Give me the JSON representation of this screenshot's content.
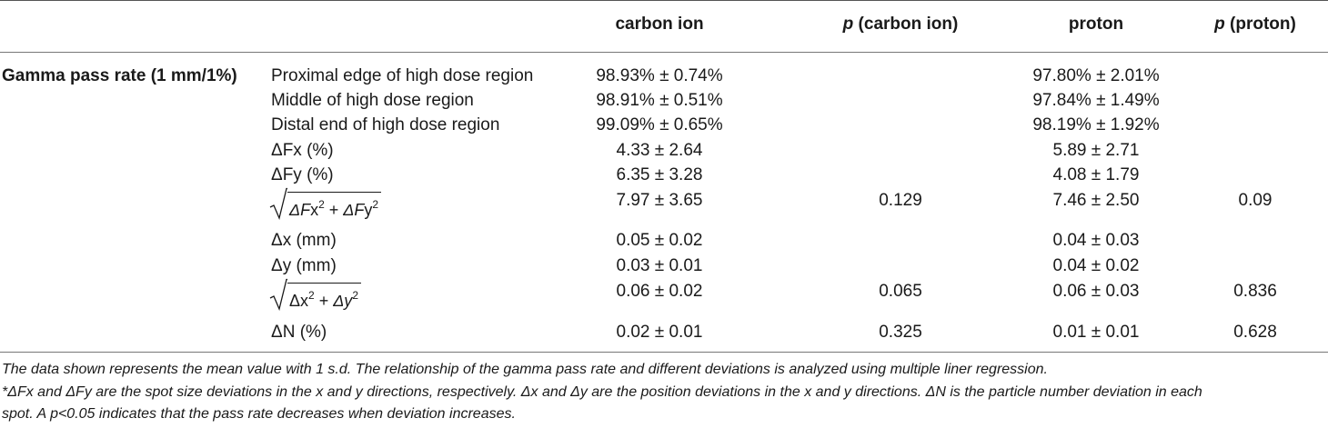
{
  "table": {
    "headers": {
      "c1": "carbon ion",
      "p1_prefix": "p",
      "p1_rest": " (carbon ion)",
      "c2": "proton",
      "p2_prefix": "p",
      "p2_rest": " (proton)"
    },
    "group_label": "Gamma pass rate (1 mm/1%)",
    "rows": [
      {
        "label": "Proximal edge of high dose region",
        "c1": "98.93% ± 0.74%",
        "p1": "",
        "c2": "97.80% ± 2.01%",
        "p2": ""
      },
      {
        "label": "Middle of high dose region",
        "c1": "98.91% ± 0.51%",
        "p1": "",
        "c2": "97.84% ± 1.49%",
        "p2": ""
      },
      {
        "label": "Distal end of high dose region",
        "c1": "99.09% ± 0.65%",
        "p1": "",
        "c2": "98.19% ± 1.92%",
        "p2": ""
      },
      {
        "label": "ΔFx (%)",
        "c1": "4.33 ± 2.64",
        "p1": "",
        "c2": "5.89 ± 2.71",
        "p2": ""
      },
      {
        "label": "ΔFy (%)",
        "c1": "6.35 ± 3.28",
        "p1": "",
        "c2": "4.08 ± 1.79",
        "p2": ""
      },
      {
        "label": "sqrt(ΔFx² + ΔFy²)",
        "c1": "7.97 ± 3.65",
        "p1": "0.129",
        "c2": "7.46 ± 2.50",
        "p2": "0.09"
      },
      {
        "label": "Δx (mm)",
        "c1": "0.05 ± 0.02",
        "p1": "",
        "c2": "0.04 ± 0.03",
        "p2": ""
      },
      {
        "label": "Δy (mm)",
        "c1": "0.03 ± 0.01",
        "p1": "",
        "c2": "0.04 ± 0.02",
        "p2": ""
      },
      {
        "label": "sqrt(Δx² + Δy²)",
        "c1": "0.06 ± 0.02",
        "p1": "0.065",
        "c2": "0.06 ± 0.03",
        "p2": "0.836"
      },
      {
        "label": "ΔN (%)",
        "c1": "0.02 ± 0.01",
        "p1": "0.325",
        "c2": "0.01 ± 0.01",
        "p2": "0.628"
      }
    ],
    "formula_parts": {
      "r5_a": "ΔF",
      "r5_b": "x",
      "r5_plus": " + ",
      "r5_c": "ΔF",
      "r5_d": "y",
      "r8_a": "Δx",
      "r8_plus": " + ",
      "r8_b": "Δy",
      "exp": "2"
    }
  },
  "notes": [
    "The data shown represents the mean value with 1 s.d. The relationship of the gamma pass rate and different deviations is analyzed using multiple liner regression.",
    "*ΔFx and ΔFy are the spot size deviations in the x and y directions, respectively. Δx and Δy are the position deviations in the x and y directions. ΔN is the particle number deviation in each",
    "spot. A p<0.05 indicates that the pass rate decreases when deviation increases."
  ]
}
